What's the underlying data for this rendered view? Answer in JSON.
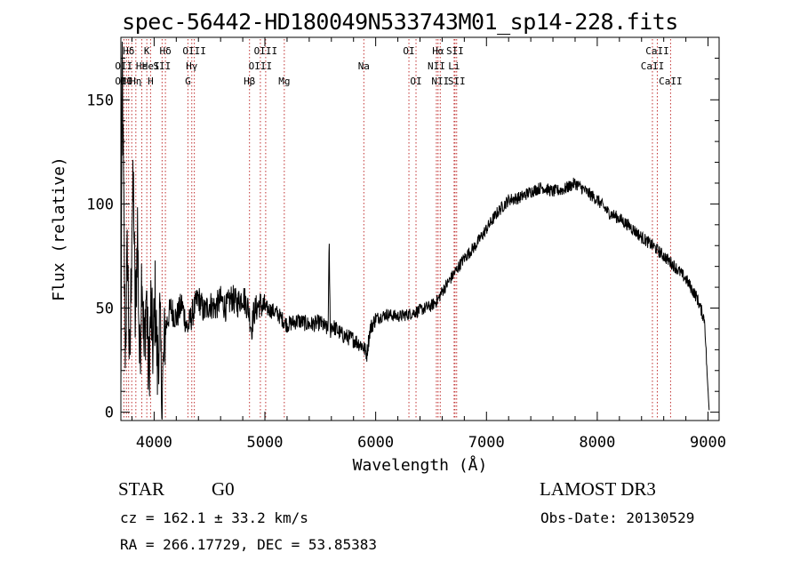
{
  "header": {
    "title": "spec-56442-HD180049N533743M01_sp14-228.fits"
  },
  "info": {
    "object_class": "STAR",
    "subclass": "G0",
    "survey": "LAMOST DR3",
    "cz": "cz = 162.1 ± 33.2 km/s",
    "obs_date": "Obs-Date: 20130529",
    "coords": "RA = 266.17729, DEC =  53.85383"
  },
  "chart_data": {
    "type": "line",
    "title": "spec-56442-HD180049N533743M01_sp14-228.fits",
    "xlabel": "Wavelength (Å)",
    "ylabel": "Flux (relative)",
    "xlim": [
      3700,
      9100
    ],
    "ylim": [
      -4,
      180
    ],
    "xticks": [
      4000,
      5000,
      6000,
      7000,
      8000,
      9000
    ],
    "yticks": [
      0,
      50,
      100,
      150
    ],
    "spectrum_anchors": [
      [
        3700,
        5
      ],
      [
        3712,
        170
      ],
      [
        3725,
        100
      ],
      [
        3740,
        30
      ],
      [
        3760,
        80
      ],
      [
        3780,
        15
      ],
      [
        3800,
        95
      ],
      [
        3815,
        105
      ],
      [
        3830,
        40
      ],
      [
        3850,
        90
      ],
      [
        3870,
        20
      ],
      [
        3890,
        75
      ],
      [
        3910,
        25
      ],
      [
        3930,
        60
      ],
      [
        3950,
        15
      ],
      [
        3970,
        50
      ],
      [
        3990,
        30
      ],
      [
        4010,
        55
      ],
      [
        4030,
        20
      ],
      [
        4050,
        45
      ],
      [
        4070,
        5
      ],
      [
        4100,
        40
      ],
      [
        4150,
        50
      ],
      [
        4200,
        45
      ],
      [
        4250,
        52
      ],
      [
        4300,
        40
      ],
      [
        4350,
        48
      ],
      [
        4400,
        55
      ],
      [
        4450,
        48
      ],
      [
        4500,
        52
      ],
      [
        4550,
        50
      ],
      [
        4600,
        54
      ],
      [
        4650,
        50
      ],
      [
        4700,
        55
      ],
      [
        4750,
        52
      ],
      [
        4800,
        56
      ],
      [
        4850,
        50
      ],
      [
        4880,
        40
      ],
      [
        4900,
        48
      ],
      [
        4950,
        52
      ],
      [
        5000,
        50
      ],
      [
        5100,
        48
      ],
      [
        5200,
        42
      ],
      [
        5300,
        44
      ],
      [
        5400,
        42
      ],
      [
        5500,
        43
      ],
      [
        5560,
        40
      ],
      [
        5570,
        39
      ],
      [
        5580,
        82
      ],
      [
        5590,
        38
      ],
      [
        5600,
        42
      ],
      [
        5700,
        37
      ],
      [
        5800,
        35
      ],
      [
        5880,
        32
      ],
      [
        5920,
        28
      ],
      [
        5950,
        40
      ],
      [
        6000,
        45
      ],
      [
        6100,
        47
      ],
      [
        6200,
        46
      ],
      [
        6300,
        47
      ],
      [
        6400,
        49
      ],
      [
        6500,
        51
      ],
      [
        6563,
        54
      ],
      [
        6600,
        58
      ],
      [
        6700,
        66
      ],
      [
        6800,
        74
      ],
      [
        6900,
        80
      ],
      [
        7000,
        88
      ],
      [
        7100,
        96
      ],
      [
        7200,
        102
      ],
      [
        7300,
        103
      ],
      [
        7400,
        106
      ],
      [
        7500,
        108
      ],
      [
        7600,
        106
      ],
      [
        7700,
        107
      ],
      [
        7800,
        110
      ],
      [
        7900,
        106
      ],
      [
        8000,
        102
      ],
      [
        8100,
        96
      ],
      [
        8200,
        93
      ],
      [
        8300,
        89
      ],
      [
        8400,
        84
      ],
      [
        8500,
        80
      ],
      [
        8600,
        75
      ],
      [
        8700,
        70
      ],
      [
        8800,
        64
      ],
      [
        8900,
        55
      ],
      [
        8970,
        44
      ],
      [
        8990,
        20
      ],
      [
        9010,
        1
      ]
    ],
    "line_marks": [
      {
        "label": "OII",
        "wave": 3727,
        "row": 3
      },
      {
        "label": "Hθ",
        "wave": 3750,
        "row": 3
      },
      {
        "label": "Hη",
        "wave": 3835,
        "row": 3
      },
      {
        "label": "OII",
        "wave": 3727,
        "row": 2
      },
      {
        "label": "Hε",
        "wave": 3889,
        "row": 2
      },
      {
        "label": "HeI",
        "wave": 3970,
        "row": 2
      },
      {
        "label": "Hδ",
        "wave": 3770,
        "row": 1
      },
      {
        "label": "K",
        "wave": 3934,
        "row": 1
      },
      {
        "label": "Hδ",
        "wave": 4102,
        "row": 1
      },
      {
        "label": "SII",
        "wave": 4072,
        "row": 2
      },
      {
        "label": "H",
        "wave": 3968,
        "row": 3
      },
      {
        "label": "OIII",
        "wave": 4363,
        "row": 1
      },
      {
        "label": "Hγ",
        "wave": 4340,
        "row": 2
      },
      {
        "label": "G",
        "wave": 4305,
        "row": 3
      },
      {
        "label": "Hβ",
        "wave": 4861,
        "row": 3
      },
      {
        "label": "OIII",
        "wave": 5007,
        "row": 1
      },
      {
        "label": "OIII",
        "wave": 4959,
        "row": 2
      },
      {
        "label": "Mg",
        "wave": 5175,
        "row": 3
      },
      {
        "label": "Na",
        "wave": 5893,
        "row": 2
      },
      {
        "label": "OI",
        "wave": 6300,
        "row": 1
      },
      {
        "label": "OI",
        "wave": 6364,
        "row": 3
      },
      {
        "label": "Hα",
        "wave": 6563,
        "row": 1
      },
      {
        "label": "SII",
        "wave": 6716,
        "row": 1
      },
      {
        "label": "NII",
        "wave": 6548,
        "row": 2
      },
      {
        "label": "Li",
        "wave": 6708,
        "row": 2
      },
      {
        "label": "NII",
        "wave": 6583,
        "row": 3
      },
      {
        "label": "SII",
        "wave": 6731,
        "row": 3
      },
      {
        "label": "CaII",
        "wave": 8542,
        "row": 1
      },
      {
        "label": "CaII",
        "wave": 8498,
        "row": 2
      },
      {
        "label": "CaII",
        "wave": 8662,
        "row": 3
      }
    ],
    "marker_lines": [
      3727,
      3750,
      3770,
      3798,
      3835,
      3889,
      3934,
      3968,
      4072,
      4102,
      4305,
      4340,
      4363,
      4861,
      4959,
      5007,
      5175,
      5893,
      6300,
      6364,
      6548,
      6563,
      6583,
      6708,
      6716,
      6731,
      8498,
      8542,
      8662
    ]
  }
}
